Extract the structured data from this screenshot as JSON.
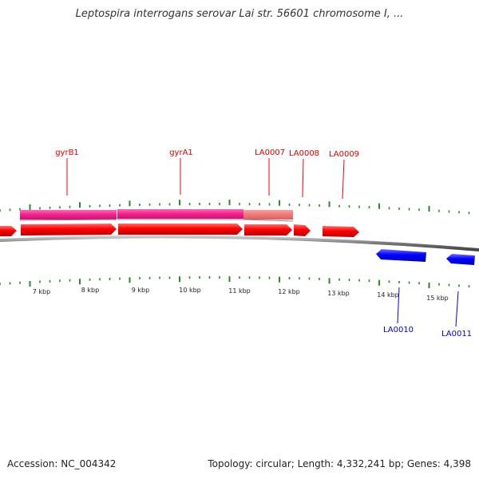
{
  "header": {
    "title": "Leptospira interrogans serovar Lai str. 56601 chromosome I, ..."
  },
  "map": {
    "topology_view": "circular-arc",
    "forward_color": "#ff0000",
    "reverse_color": "#0000ff",
    "cds_highlight_color": "#ff3399",
    "tick_color": "#2a8a2a",
    "backbone_color": "#777777",
    "position_labels": [
      "7 kbp",
      "8 kbp",
      "9 kbp",
      "10 kbp",
      "11 kbp",
      "12 kbp",
      "13 kbp",
      "14 kbp",
      "15 kbp"
    ],
    "genes": [
      {
        "label": "gyrB1",
        "strand": "forward"
      },
      {
        "label": "gyrA1",
        "strand": "forward"
      },
      {
        "label": "LA0007",
        "strand": "forward"
      },
      {
        "label": "LA0008",
        "strand": "forward"
      },
      {
        "label": "LA0009",
        "strand": "forward"
      },
      {
        "label": "LA0010",
        "strand": "reverse"
      },
      {
        "label": "LA0011",
        "strand": "reverse"
      }
    ]
  },
  "footer": {
    "accession": "Accession: NC_004342",
    "summary": "Topology: circular; Length: 4,332,241 bp; Genes: 4,398"
  }
}
